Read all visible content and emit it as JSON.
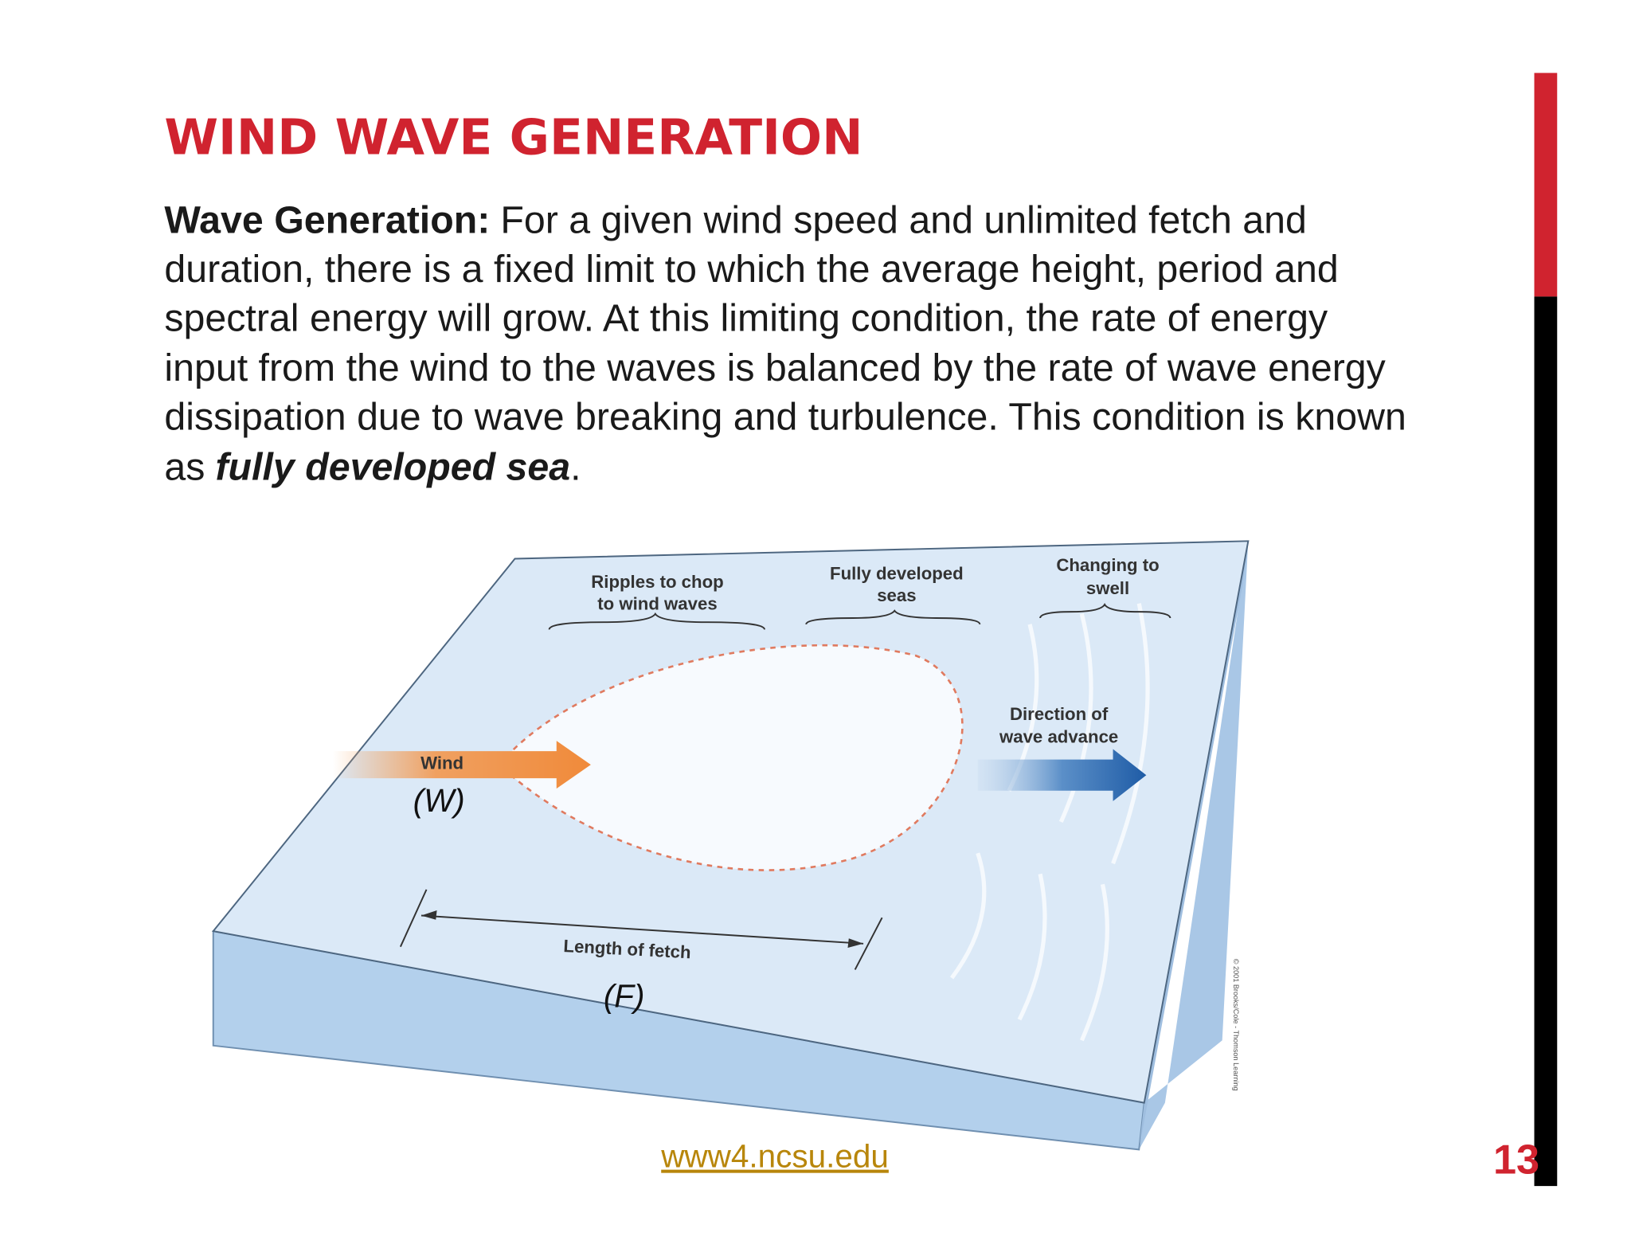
{
  "header": {
    "title": "WIND WAVE GENERATION"
  },
  "body": {
    "lead": "Wave Generation:",
    "lines": [
      "For a given wind speed and unlimited fetch and",
      "duration, there is a fixed limit to which the average height, period and",
      "spectral energy will grow. At this limiting condition, the rate of energy",
      "input from the wind to the waves is balanced by the rate of wave energy",
      "dissipation due to wave breaking and turbulence. This condition is known"
    ],
    "last": [
      "as",
      "fully developed sea",
      "."
    ]
  },
  "diagram": {
    "labels": {
      "ripples": [
        "Ripples to chop",
        "to wind waves"
      ],
      "developed": [
        "Fully developed",
        "seas"
      ],
      "swell": [
        "Changing to",
        "swell"
      ],
      "direction": [
        "Direction of",
        "wave advance"
      ],
      "wind": "Wind",
      "wind_symbol": "(W)",
      "fetch": "Length of fetch",
      "fetch_symbol": "(F)",
      "credit": "© 2001 Brooks/Cole - Thomson Learning"
    }
  },
  "footer": {
    "link": "www4.ncsu.edu",
    "page": "13"
  }
}
